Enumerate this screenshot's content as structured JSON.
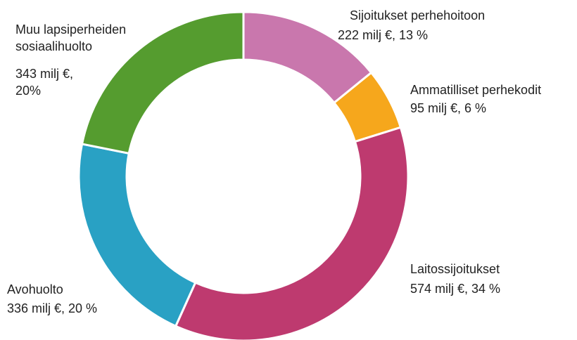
{
  "chart_data": {
    "type": "donut",
    "categories": [
      "Sijoitukset perhehoitoon",
      "Ammatilliset perhekodit",
      "Laitossijoitukset",
      "Avohuolto",
      "Muu lapsiperheiden sosiaalihuolto"
    ],
    "values": [
      222,
      95,
      574,
      336,
      343
    ],
    "value_labels": [
      "222 milj €, 13 %",
      "95 milj €, 6 %",
      "574 milj €, 34 %",
      "336 milj €, 20 %",
      "343 milj €, 20%"
    ],
    "colors": [
      "#c977ad",
      "#f6a71c",
      "#be3a6f",
      "#29a1c4",
      "#559c2f"
    ]
  }
}
